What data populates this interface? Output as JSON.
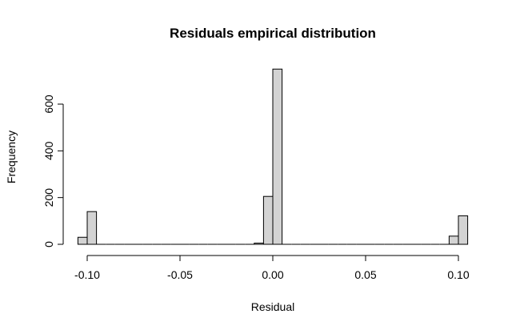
{
  "chart_data": {
    "type": "bar",
    "title": "Residuals empirical distribution",
    "xlabel": "Residual",
    "ylabel": "Frequency",
    "bar_color": "#d3d3d3",
    "bar_stroke": "#000000",
    "bin_width": 0.005,
    "xlim": [
      -0.105,
      0.105
    ],
    "ylim": [
      0,
      750
    ],
    "x_ticks": [
      -0.1,
      -0.05,
      0.0,
      0.05,
      0.1
    ],
    "x_tick_labels": [
      "-0.10",
      "-0.05",
      "0.00",
      "0.05",
      "0.10"
    ],
    "y_ticks": [
      0,
      200,
      400,
      600
    ],
    "y_tick_labels": [
      "0",
      "200",
      "400",
      "600"
    ],
    "bins": [
      {
        "start": -0.105,
        "end": -0.1,
        "count": 30
      },
      {
        "start": -0.1,
        "end": -0.095,
        "count": 140
      },
      {
        "start": -0.095,
        "end": -0.09,
        "count": 0
      },
      {
        "start": -0.09,
        "end": -0.085,
        "count": 0
      },
      {
        "start": -0.085,
        "end": -0.08,
        "count": 0
      },
      {
        "start": -0.08,
        "end": -0.075,
        "count": 0
      },
      {
        "start": -0.075,
        "end": -0.07,
        "count": 0
      },
      {
        "start": -0.07,
        "end": -0.065,
        "count": 0
      },
      {
        "start": -0.065,
        "end": -0.06,
        "count": 0
      },
      {
        "start": -0.06,
        "end": -0.055,
        "count": 0
      },
      {
        "start": -0.055,
        "end": -0.05,
        "count": 0
      },
      {
        "start": -0.05,
        "end": -0.045,
        "count": 0
      },
      {
        "start": -0.045,
        "end": -0.04,
        "count": 0
      },
      {
        "start": -0.04,
        "end": -0.035,
        "count": 0
      },
      {
        "start": -0.035,
        "end": -0.03,
        "count": 0
      },
      {
        "start": -0.03,
        "end": -0.025,
        "count": 0
      },
      {
        "start": -0.025,
        "end": -0.02,
        "count": 0
      },
      {
        "start": -0.02,
        "end": -0.015,
        "count": 0
      },
      {
        "start": -0.015,
        "end": -0.01,
        "count": 0
      },
      {
        "start": -0.01,
        "end": -0.005,
        "count": 5
      },
      {
        "start": -0.005,
        "end": 0.0,
        "count": 205
      },
      {
        "start": 0.0,
        "end": 0.005,
        "count": 750
      },
      {
        "start": 0.005,
        "end": 0.01,
        "count": 0
      },
      {
        "start": 0.01,
        "end": 0.015,
        "count": 0
      },
      {
        "start": 0.015,
        "end": 0.02,
        "count": 0
      },
      {
        "start": 0.02,
        "end": 0.025,
        "count": 0
      },
      {
        "start": 0.025,
        "end": 0.03,
        "count": 0
      },
      {
        "start": 0.03,
        "end": 0.035,
        "count": 0
      },
      {
        "start": 0.035,
        "end": 0.04,
        "count": 0
      },
      {
        "start": 0.04,
        "end": 0.045,
        "count": 0
      },
      {
        "start": 0.045,
        "end": 0.05,
        "count": 0
      },
      {
        "start": 0.05,
        "end": 0.055,
        "count": 0
      },
      {
        "start": 0.055,
        "end": 0.06,
        "count": 0
      },
      {
        "start": 0.06,
        "end": 0.065,
        "count": 0
      },
      {
        "start": 0.065,
        "end": 0.07,
        "count": 0
      },
      {
        "start": 0.07,
        "end": 0.075,
        "count": 0
      },
      {
        "start": 0.075,
        "end": 0.08,
        "count": 0
      },
      {
        "start": 0.08,
        "end": 0.085,
        "count": 0
      },
      {
        "start": 0.085,
        "end": 0.09,
        "count": 0
      },
      {
        "start": 0.09,
        "end": 0.095,
        "count": 0
      },
      {
        "start": 0.095,
        "end": 0.1,
        "count": 35
      },
      {
        "start": 0.1,
        "end": 0.105,
        "count": 122
      }
    ],
    "grid": false,
    "legend": "none"
  }
}
